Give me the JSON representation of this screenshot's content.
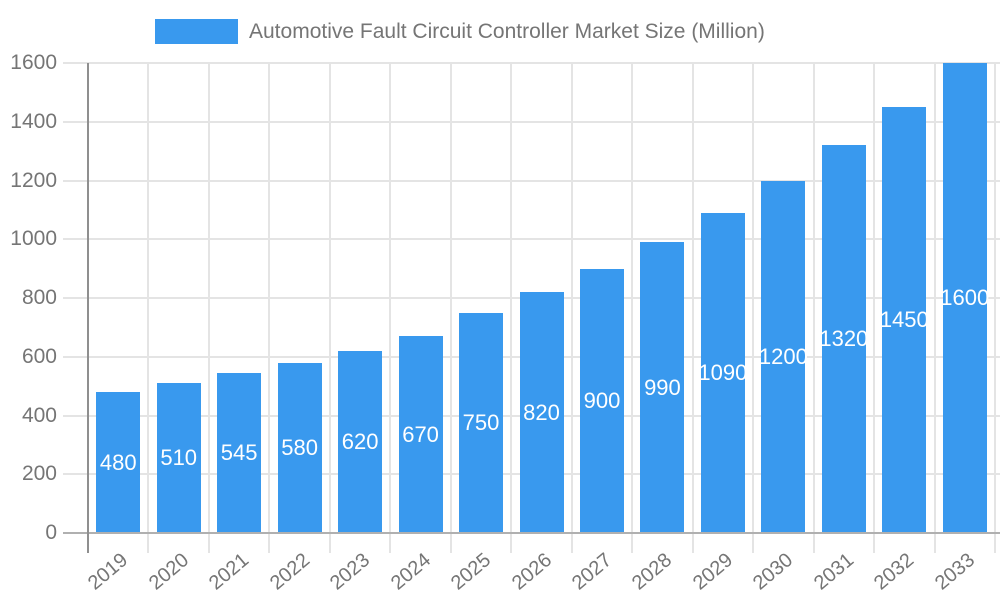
{
  "chart_data": {
    "type": "bar",
    "title": "Automotive Fault Circuit Controller Market Size (Million)",
    "legend": {
      "position": "top",
      "label": "Automotive Fault Circuit Controller Market Size (Million)"
    },
    "categories": [
      "2019",
      "2020",
      "2021",
      "2022",
      "2023",
      "2024",
      "2025",
      "2026",
      "2027",
      "2028",
      "2029",
      "2030",
      "2031",
      "2032",
      "2033"
    ],
    "values": [
      480,
      510,
      545,
      580,
      620,
      670,
      750,
      820,
      900,
      990,
      1090,
      1200,
      1320,
      1450,
      1600
    ],
    "xlabel": "",
    "ylabel": "",
    "ylim": [
      0,
      1600
    ],
    "ytick_step": 200,
    "y_tick_labels": [
      "0",
      "200",
      "400",
      "600",
      "800",
      "1000",
      "1200",
      "1400",
      "1600"
    ],
    "grid": "horizontal-and-vertical",
    "value_labels_position": "inside-middle",
    "x_label_rotation_deg": -40,
    "colors": {
      "bar": "#3999EE",
      "grid": "#E4E4E4",
      "axis_y_line": "#8F8F8F",
      "axis_x_line": "#B0B0B0",
      "tick_text": "#757575",
      "legend_text": "#757575",
      "value_label_text": "#FFFFFF",
      "background": "#FFFFFF"
    }
  }
}
